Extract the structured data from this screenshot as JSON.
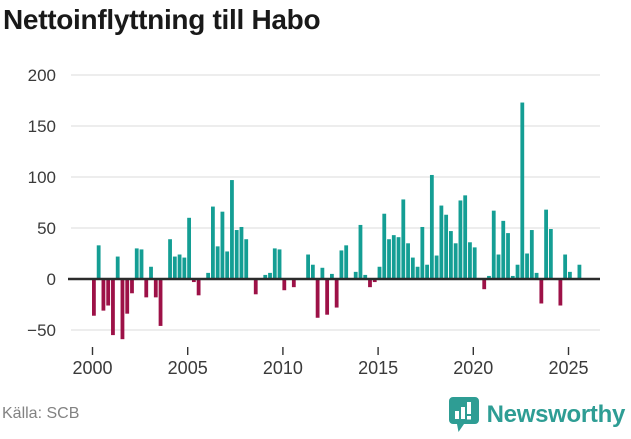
{
  "page": {
    "title": "Nettoinflyttning till Habo",
    "source": "Källa: SCB"
  },
  "brand": {
    "name": "Newsworthy",
    "icon": "newsworthy-badge-icon",
    "color": "#2E9D94"
  },
  "colors": {
    "positive_bar": "#149E94",
    "negative_bar": "#9D1147",
    "grid": "#E2E2E2",
    "zero_axis": "#2B2B2B",
    "tick_label": "#3A3A3A",
    "x_tick_mark": "#333333",
    "title_text": "#191919",
    "source_text": "#828282",
    "background": "#FFFFFF"
  },
  "chart_data": {
    "type": "bar",
    "title": "Nettoinflyttning till Habo",
    "frequency": "quarterly",
    "start": "2000Q1",
    "end": "2025Q3",
    "grid": true,
    "legend": false,
    "ylim": [
      -75,
      215
    ],
    "y_ticks": [
      200,
      150,
      100,
      50,
      0,
      -50
    ],
    "y_tick_labels": [
      "200",
      "150",
      "100",
      "50",
      "0",
      "−50"
    ],
    "x_tick_labels": [
      "2000",
      "2005",
      "2010",
      "2015",
      "2020",
      "2025"
    ],
    "series": [
      {
        "name": "Nettoinflyttning",
        "values": [
          -36,
          33,
          -31,
          -26,
          -55,
          22,
          -59,
          -34,
          -14,
          30,
          29,
          -18,
          12,
          -18,
          -46,
          0,
          39,
          22,
          24,
          21,
          60,
          -3,
          -16,
          0,
          6,
          71,
          32,
          66,
          27,
          97,
          48,
          51,
          39,
          0,
          -15,
          0,
          4,
          6,
          30,
          29,
          -11,
          0,
          -8,
          0,
          0,
          24,
          14,
          -38,
          11,
          -35,
          5,
          -28,
          28,
          33,
          0,
          7,
          53,
          4,
          -8,
          -3,
          12,
          64,
          39,
          43,
          41,
          78,
          35,
          21,
          12,
          51,
          14,
          102,
          23,
          72,
          63,
          47,
          35,
          77,
          82,
          36,
          31,
          0,
          -10,
          3,
          67,
          24,
          57,
          45,
          3,
          14,
          173,
          25,
          48,
          6,
          -24,
          68,
          49,
          0,
          -26,
          24,
          7,
          0,
          14
        ]
      }
    ]
  }
}
